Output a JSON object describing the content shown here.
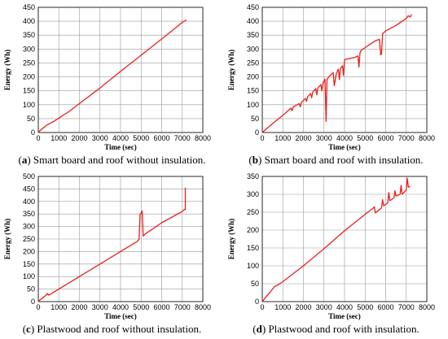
{
  "chart_data": [
    {
      "type": "line",
      "panel": "a",
      "caption_label": "a",
      "caption_text": "Smart board and roof without insulation.",
      "xlabel": "Time (sec)",
      "ylabel": "Energy (Wh)",
      "xlim": [
        0,
        8000
      ],
      "ylim": [
        0,
        450
      ],
      "xticks": [
        0,
        1000,
        2000,
        3000,
        4000,
        5000,
        6000,
        7000,
        8000
      ],
      "yticks": [
        0,
        50,
        100,
        150,
        200,
        250,
        300,
        350,
        400,
        450
      ],
      "grid": true,
      "line_color": "#e8201c",
      "series": [
        {
          "x": [
            0,
            100,
            200,
            300,
            400,
            500,
            600,
            800,
            1000,
            1500,
            2000,
            3000,
            4000,
            5000,
            6000,
            7000,
            7200
          ],
          "y": [
            0,
            8,
            14,
            20,
            26,
            30,
            34,
            42,
            52,
            76,
            104,
            160,
            220,
            278,
            336,
            396,
            405
          ]
        }
      ]
    },
    {
      "type": "line",
      "panel": "b",
      "caption_label": "b",
      "caption_text": "Smart board and roof with insulation.",
      "xlabel": "Time (sec)",
      "ylabel": "Energy (Wh)",
      "xlim": [
        0,
        8000
      ],
      "ylim": [
        0,
        450
      ],
      "xticks": [
        0,
        1000,
        2000,
        3000,
        4000,
        5000,
        6000,
        7000,
        8000
      ],
      "yticks": [
        0,
        50,
        100,
        150,
        200,
        250,
        300,
        350,
        400,
        450
      ],
      "grid": true,
      "line_color": "#e8201c",
      "series": [
        {
          "x": [
            0,
            500,
            1000,
            1400,
            1450,
            1500,
            1800,
            1850,
            1900,
            2100,
            2150,
            2200,
            2350,
            2400,
            2450,
            2600,
            2650,
            2700,
            2850,
            2900,
            2950,
            3050,
            3100,
            3150,
            3300,
            3450,
            3500,
            3600,
            3700,
            3750,
            3800,
            3900,
            3950,
            4000,
            4500,
            4650,
            4700,
            4750,
            4800,
            5500,
            5700,
            5750,
            5800,
            5850,
            6000,
            6500,
            7000,
            7100,
            7200,
            7250
          ],
          "y": [
            0,
            32,
            62,
            88,
            78,
            92,
            104,
            92,
            108,
            122,
            112,
            128,
            140,
            125,
            145,
            158,
            135,
            160,
            172,
            150,
            178,
            192,
            40,
            192,
            205,
            215,
            168,
            212,
            228,
            190,
            230,
            240,
            205,
            262,
            270,
            275,
            235,
            285,
            295,
            330,
            335,
            280,
            282,
            355,
            365,
            385,
            410,
            420,
            415,
            425
          ]
        }
      ]
    },
    {
      "type": "line",
      "panel": "c",
      "caption_label": "c",
      "caption_text": "Plastwood and roof without insulation.",
      "xlabel": "Time (sec)",
      "ylabel": "Energy (Wh)",
      "xlim": [
        0,
        8000
      ],
      "ylim": [
        0,
        500
      ],
      "xticks": [
        0,
        1000,
        2000,
        3000,
        4000,
        5000,
        6000,
        7000,
        8000
      ],
      "yticks": [
        0,
        50,
        100,
        150,
        200,
        250,
        300,
        350,
        400,
        450,
        500
      ],
      "grid": true,
      "line_color": "#e8201c",
      "series": [
        {
          "x": [
            0,
            100,
            200,
            300,
            400,
            450,
            500,
            600,
            1000,
            2000,
            3000,
            4000,
            4800,
            4900,
            4950,
            5000,
            5050,
            5100,
            5150,
            5200,
            6000,
            7000,
            7100,
            7150,
            7150
          ],
          "y": [
            0,
            8,
            14,
            20,
            28,
            32,
            26,
            30,
            50,
            100,
            150,
            200,
            240,
            248,
            350,
            352,
            362,
            262,
            265,
            270,
            315,
            360,
            368,
            368,
            455
          ]
        }
      ]
    },
    {
      "type": "line",
      "panel": "d",
      "caption_label": "d",
      "caption_text": "Plastwood and roof with insulation.",
      "xlabel": "Time (sec)",
      "ylabel": "Energy (Wh)",
      "xlim": [
        0,
        8000
      ],
      "ylim": [
        0,
        350
      ],
      "xticks": [
        0,
        1000,
        2000,
        3000,
        4000,
        5000,
        6000,
        7000,
        8000
      ],
      "yticks": [
        0,
        50,
        100,
        150,
        200,
        250,
        300,
        350
      ],
      "grid": true,
      "line_color": "#e8201c",
      "series": [
        {
          "x": [
            0,
            200,
            400,
            600,
            800,
            1000,
            2000,
            3000,
            4000,
            5000,
            5400,
            5450,
            5500,
            5800,
            5850,
            5900,
            6100,
            6150,
            6200,
            6400,
            6450,
            6500,
            6700,
            6750,
            6800,
            7000,
            7050,
            7100,
            7200
          ],
          "y": [
            0,
            14,
            28,
            42,
            48,
            56,
            100,
            148,
            198,
            244,
            262,
            265,
            248,
            262,
            285,
            268,
            276,
            305,
            282,
            290,
            310,
            295,
            300,
            325,
            300,
            312,
            345,
            320,
            322
          ]
        }
      ]
    }
  ]
}
